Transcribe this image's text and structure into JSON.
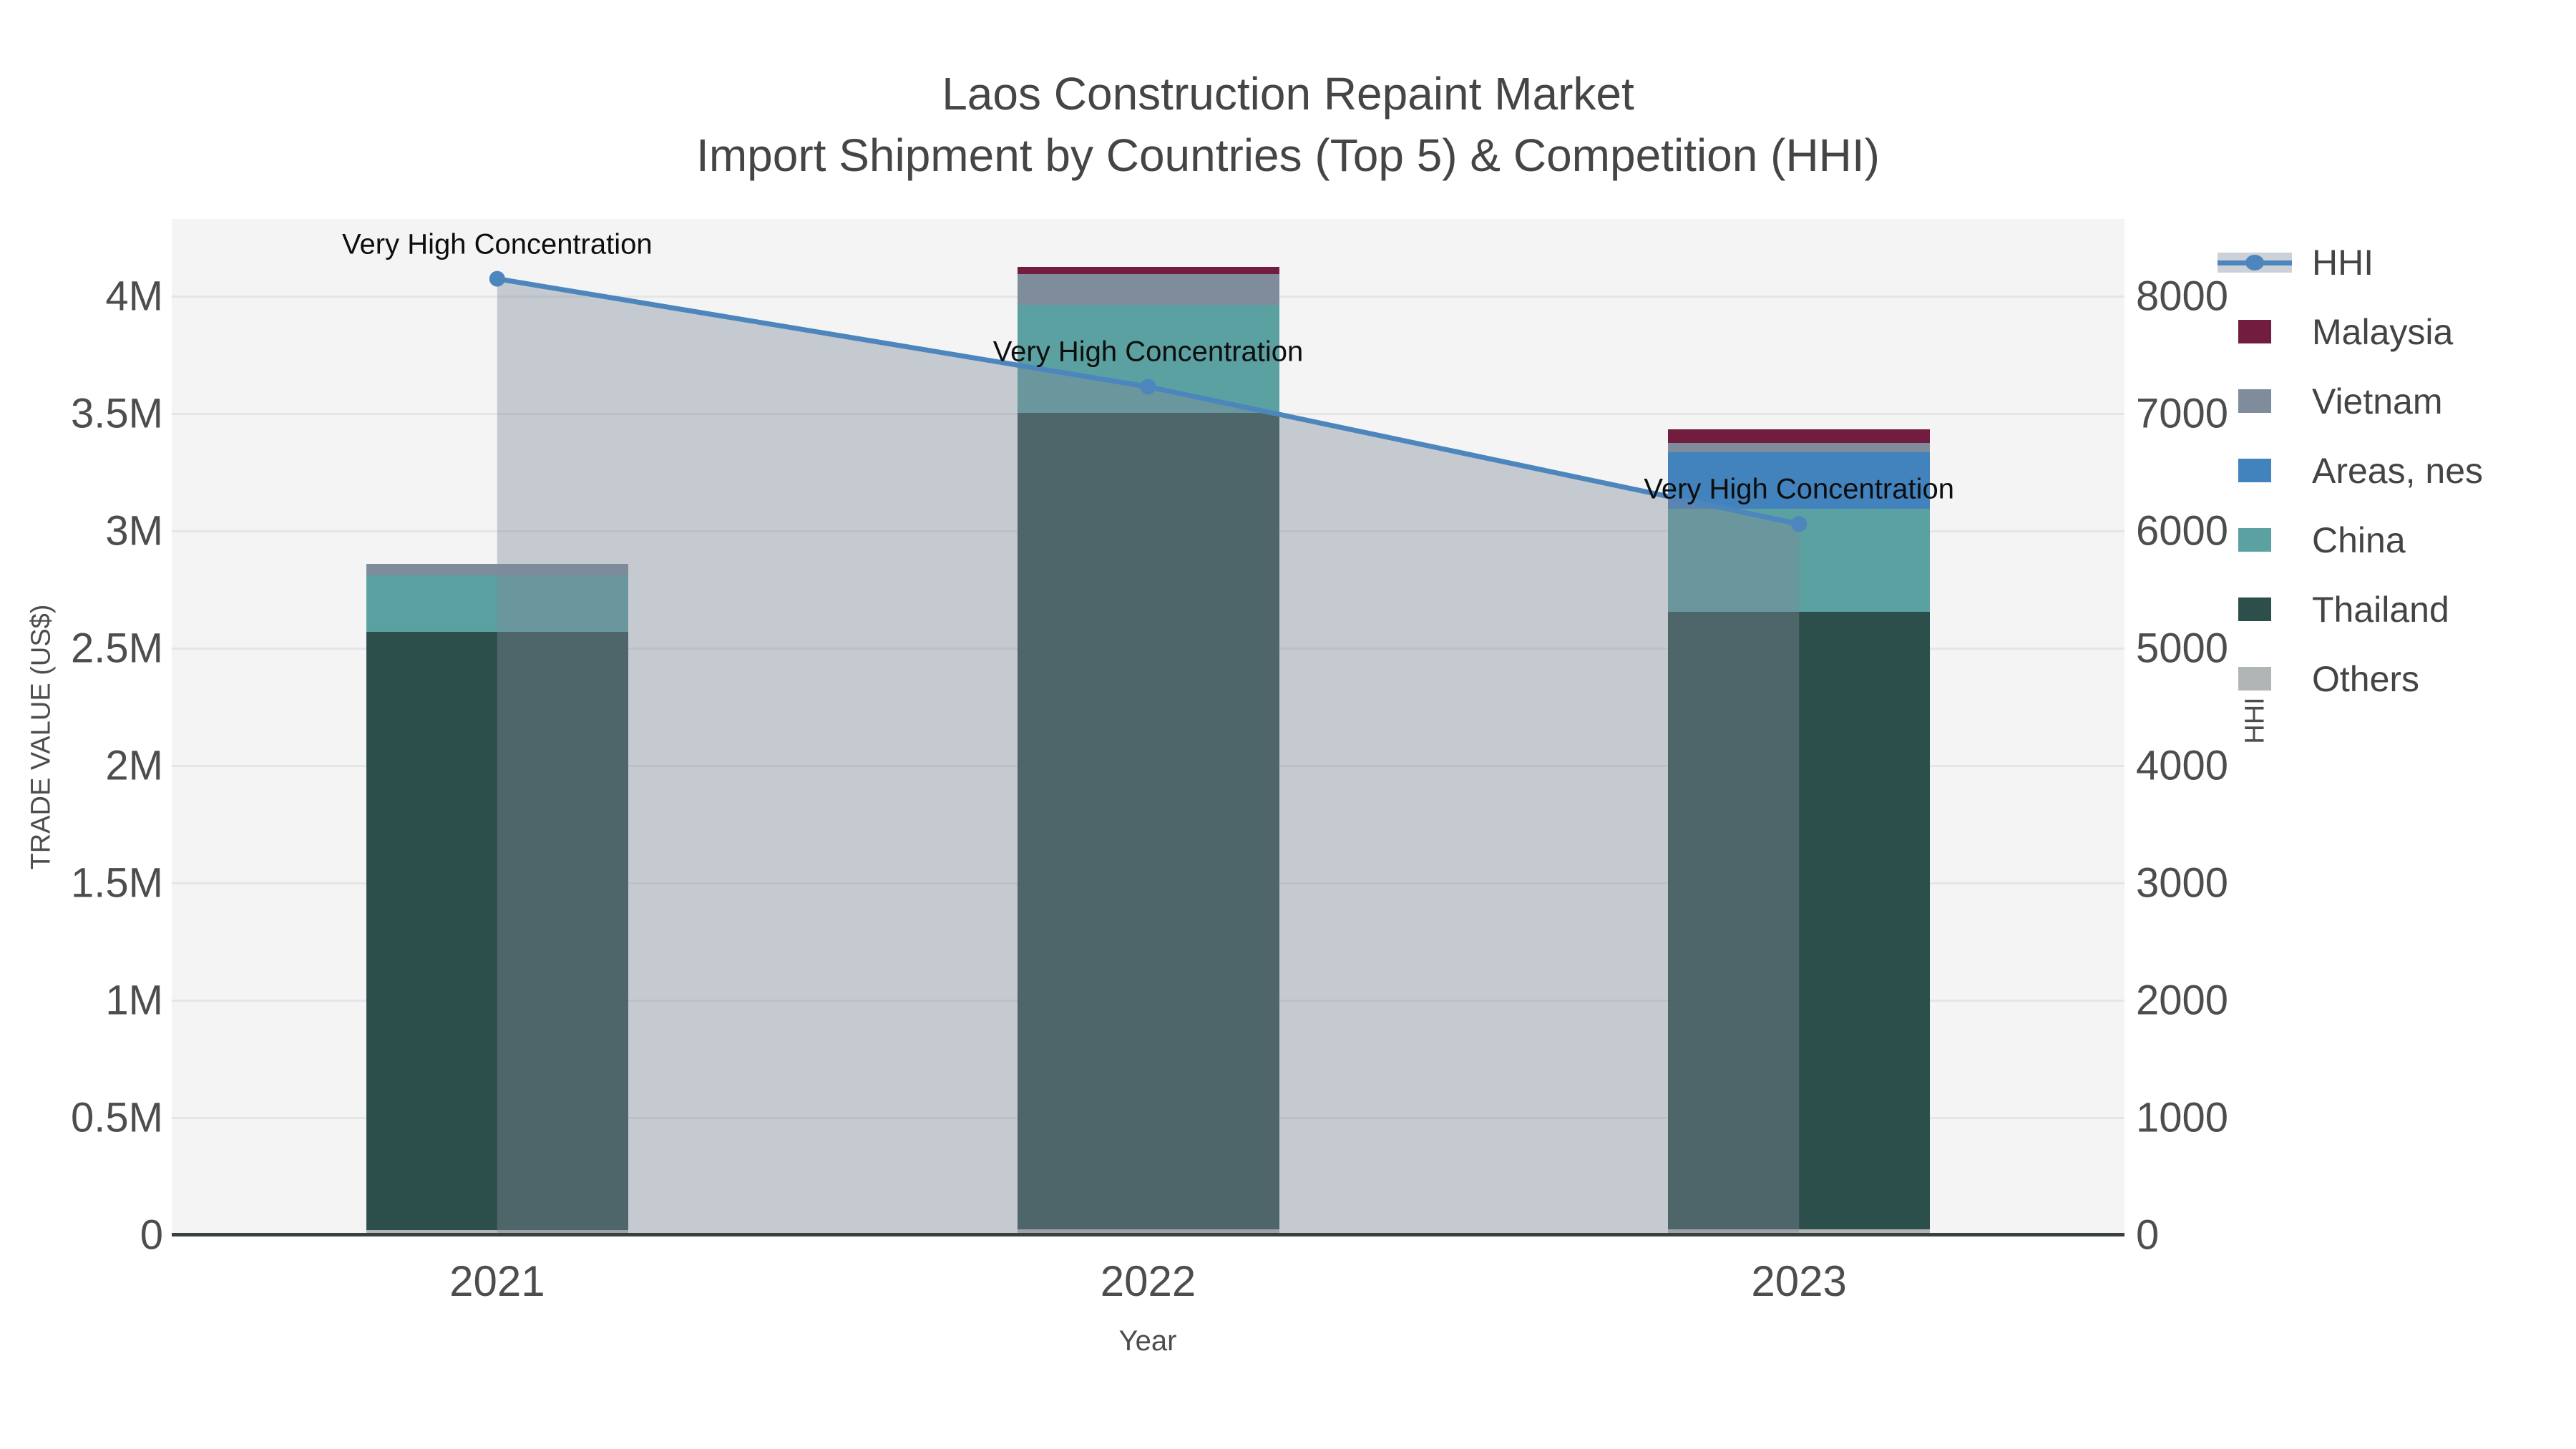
{
  "header": {
    "title": "Laos Construction Repaint Market",
    "subtitle": "Import Shipment by Countries (Top 5) & Competition (HHI)"
  },
  "colors": {
    "hhi_line": "#4c86bd",
    "hhi_area_fill": "rgba(128,138,153,0.40)",
    "plot_background": "#f4f4f5",
    "gridline": "#e4e5e7",
    "axis_line": "#3a3f3f",
    "tick_text": "#4d4d4d",
    "annotation_text": "#0e0e0e"
  },
  "legend": {
    "items": [
      {
        "label": "HHI",
        "type": "line",
        "color": "#4c86bd"
      },
      {
        "label": "Malaysia",
        "type": "box",
        "color": "#721d3f"
      },
      {
        "label": "Vietnam",
        "type": "box",
        "color": "#7e8c9b"
      },
      {
        "label": "Areas, nes",
        "type": "box",
        "color": "#4383bd"
      },
      {
        "label": "China",
        "type": "box",
        "color": "#5ba1a1"
      },
      {
        "label": "Thailand",
        "type": "box",
        "color": "#2d4f4c"
      },
      {
        "label": "Others",
        "type": "box",
        "color": "#b2b5b5"
      }
    ]
  },
  "chart_data": {
    "type": "combo (stacked bar + line, dual y-axis)",
    "title": "Laos Construction Repaint Market",
    "subtitle": "Import Shipment by Countries (Top 5) & Competition (HHI)",
    "categories": [
      "2021",
      "2022",
      "2023"
    ],
    "bar_unit": "million US$",
    "stack_order_bottom_to_top": [
      "Others",
      "Thailand",
      "China",
      "Areas, nes",
      "Vietnam",
      "Malaysia"
    ],
    "series": [
      {
        "name": "Others",
        "color": "#b2b5b5",
        "values": [
          0.02,
          0.025,
          0.025
        ]
      },
      {
        "name": "Thailand",
        "color": "#2d4f4c",
        "values": [
          2.55,
          3.48,
          2.63
        ]
      },
      {
        "name": "China",
        "color": "#5ba1a1",
        "values": [
          0.24,
          0.46,
          0.44
        ]
      },
      {
        "name": "Areas, nes",
        "color": "#4383bd",
        "values": [
          0.0,
          0.0,
          0.24
        ]
      },
      {
        "name": "Vietnam",
        "color": "#7e8c9b",
        "values": [
          0.05,
          0.13,
          0.04
        ]
      },
      {
        "name": "Malaysia",
        "color": "#721d3f",
        "values": [
          0.0,
          0.03,
          0.06
        ]
      }
    ],
    "bar_totals_musd": [
      2.86,
      4.125,
      3.435
    ],
    "line_series": {
      "name": "HHI",
      "color": "#4c86bd",
      "values": [
        8150,
        7230,
        6060
      ],
      "area_fill": true
    },
    "annotations": [
      {
        "text": "Very High Concentration",
        "category": "2021"
      },
      {
        "text": "Very High Concentration",
        "category": "2022"
      },
      {
        "text": "Very High Concentration",
        "category": "2023"
      }
    ],
    "xlabel": "Year",
    "ylabel_left": "TRADE VALUE (US$)",
    "ylabel_right": "HHI",
    "ylim_left": [
      0,
      4.33
    ],
    "ylim_right": [
      0,
      8660
    ],
    "yticks_left": [
      {
        "value": 0,
        "label": "0"
      },
      {
        "value": 0.5,
        "label": "0.5M"
      },
      {
        "value": 1,
        "label": "1M"
      },
      {
        "value": 1.5,
        "label": "1.5M"
      },
      {
        "value": 2,
        "label": "2M"
      },
      {
        "value": 2.5,
        "label": "2.5M"
      },
      {
        "value": 3,
        "label": "3M"
      },
      {
        "value": 3.5,
        "label": "3.5M"
      },
      {
        "value": 4,
        "label": "4M"
      }
    ],
    "yticks_right": [
      {
        "value": 0,
        "label": "0"
      },
      {
        "value": 1000,
        "label": "1000"
      },
      {
        "value": 2000,
        "label": "2000"
      },
      {
        "value": 3000,
        "label": "3000"
      },
      {
        "value": 4000,
        "label": "4000"
      },
      {
        "value": 5000,
        "label": "5000"
      },
      {
        "value": 6000,
        "label": "6000"
      },
      {
        "value": 7000,
        "label": "7000"
      },
      {
        "value": 8000,
        "label": "8000"
      }
    ],
    "grid": true,
    "legend_position": "right"
  }
}
